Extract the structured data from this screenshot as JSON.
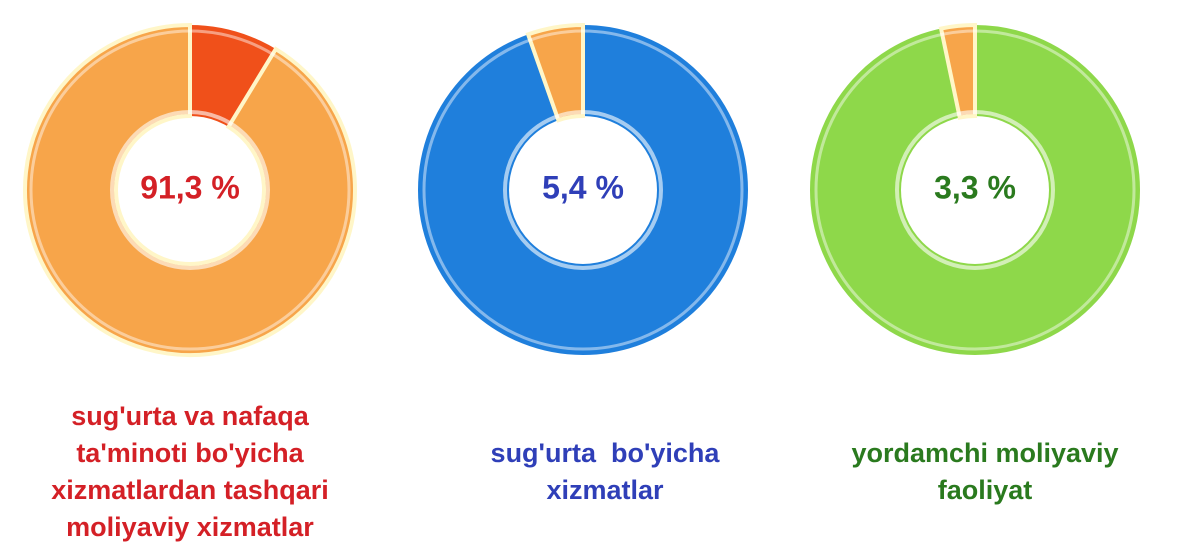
{
  "chart_data": [
    {
      "type": "donut",
      "categories": [
        "sug'urta va nafaqa ta'minoti bo'yicha xizmatlardan tashqari moliyaviy xizmatlar"
      ],
      "values": [
        91.3
      ],
      "value_labels": [
        "91,3 %"
      ],
      "slice_color": "#f7a54a",
      "ring_color": "#f0501a",
      "text_color": "#d42026"
    },
    {
      "type": "donut",
      "categories": [
        "sug'urta  bo'yicha xizmatlar"
      ],
      "values": [
        5.4
      ],
      "value_labels": [
        "5,4 %"
      ],
      "slice_color": "#f7a54a",
      "ring_color": "#1f7fdc",
      "text_color": "#2f3fb8"
    },
    {
      "type": "donut",
      "categories": [
        "yordamchi moliyaviy faoliyat"
      ],
      "values": [
        3.3
      ],
      "value_labels": [
        "3,3 %"
      ],
      "slice_color": "#f7a54a",
      "ring_color": "#8ed84a",
      "text_color": "#2a7a1e"
    }
  ]
}
